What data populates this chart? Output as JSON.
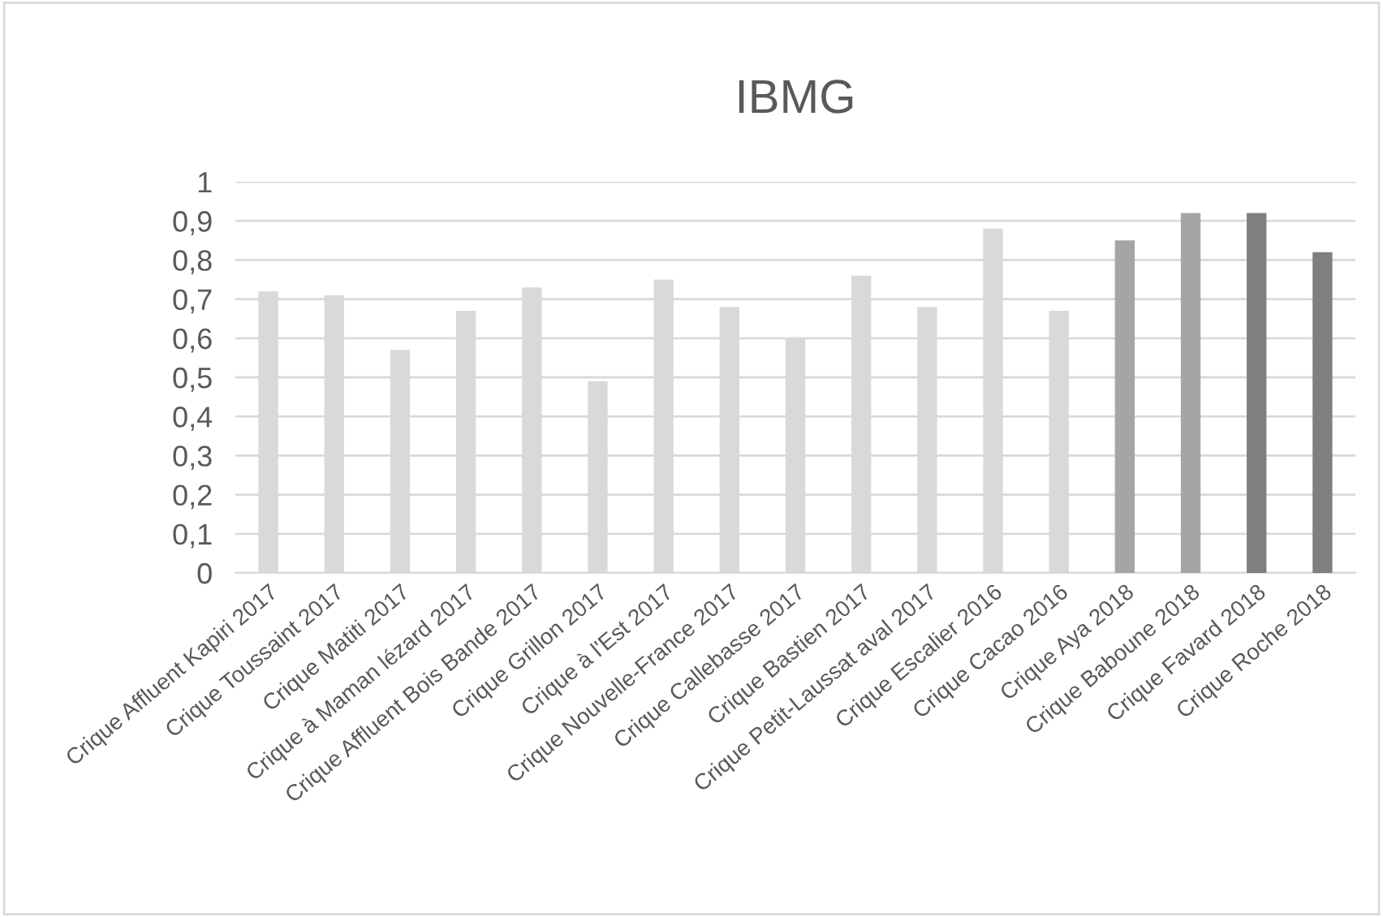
{
  "chart_data": {
    "type": "bar",
    "title": "IBMG",
    "categories": [
      "Crique Affluent Kapiri 2017",
      "Crique Toussaint 2017",
      "Crique Matiti 2017",
      "Crique à Maman lézard 2017",
      "Crique Affluent Bois Bande 2017",
      "Crique Grillon 2017",
      "Crique à l'Est 2017",
      "Crique Nouvelle-France 2017",
      "Crique Callebasse 2017",
      "Crique Bastien 2017",
      "Crique Petit-Laussat aval 2017",
      "Crique Escalier 2016",
      "Crique Cacao 2016",
      "Crique Aya 2018",
      "Crique Baboune 2018",
      "Crique Favard 2018",
      "Crique Roche 2018"
    ],
    "values": [
      0.72,
      0.71,
      0.57,
      0.67,
      0.73,
      0.49,
      0.75,
      0.68,
      0.6,
      0.76,
      0.68,
      0.88,
      0.67,
      0.85,
      0.92,
      0.92,
      0.82
    ],
    "colors": [
      "#d9d9d9",
      "#d9d9d9",
      "#d9d9d9",
      "#d9d9d9",
      "#d9d9d9",
      "#d9d9d9",
      "#d9d9d9",
      "#d9d9d9",
      "#d9d9d9",
      "#d9d9d9",
      "#d9d9d9",
      "#d9d9d9",
      "#d9d9d9",
      "#a5a5a5",
      "#a5a5a5",
      "#7f7f7f",
      "#7f7f7f"
    ],
    "ylim": [
      0,
      1
    ],
    "yticks": [
      0,
      {
        "value": 0.1,
        "label": "0,1"
      },
      {
        "value": 0.2,
        "label": "0,2"
      },
      {
        "value": 0.3,
        "label": "0,3"
      },
      {
        "value": 0.4,
        "label": "0,4"
      },
      {
        "value": 0.5,
        "label": "0,5"
      },
      {
        "value": 0.6,
        "label": "0,6"
      },
      {
        "value": 0.7,
        "label": "0,7"
      },
      {
        "value": 0.8,
        "label": "0,8"
      },
      {
        "value": 0.9,
        "label": "0,9"
      },
      1
    ],
    "grid": "y",
    "legend": false
  }
}
